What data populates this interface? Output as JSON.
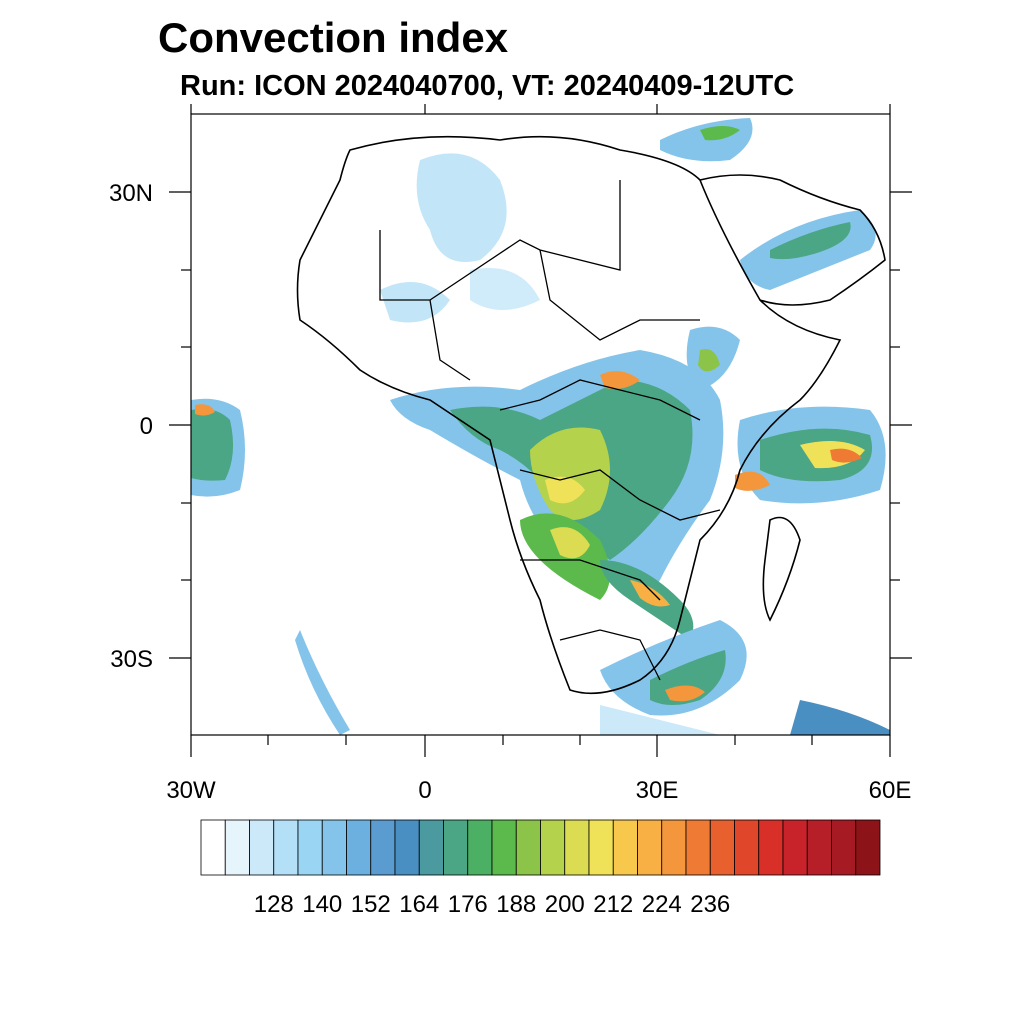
{
  "title": "Convection index",
  "subtitle": "Run: ICON 2024040700,  VT: 20240409-12UTC",
  "axes": {
    "x_ticks": [
      "30W",
      "0",
      "30E",
      "60E"
    ],
    "y_ticks": [
      "30N",
      "0",
      "30S"
    ]
  },
  "colorbar": {
    "colors": [
      "#ffffff",
      "#e6f4fb",
      "#cbe9f8",
      "#b3e0f6",
      "#9ad6f3",
      "#84c4ea",
      "#6cb0e0",
      "#5a9ccf",
      "#4a8fc2",
      "#4a9aa0",
      "#4aa685",
      "#4cb064",
      "#5cba4c",
      "#8cc44a",
      "#b4d24c",
      "#dcdc52",
      "#f0e258",
      "#f8c84c",
      "#f8b044",
      "#f4963c",
      "#ef7a34",
      "#e8602e",
      "#e0472a",
      "#d83028",
      "#c8232a",
      "#b61e28",
      "#a61a24",
      "#8c1418"
    ],
    "labels": [
      "128",
      "140",
      "152",
      "164",
      "176",
      "188",
      "200",
      "212",
      "224",
      "236"
    ]
  }
}
